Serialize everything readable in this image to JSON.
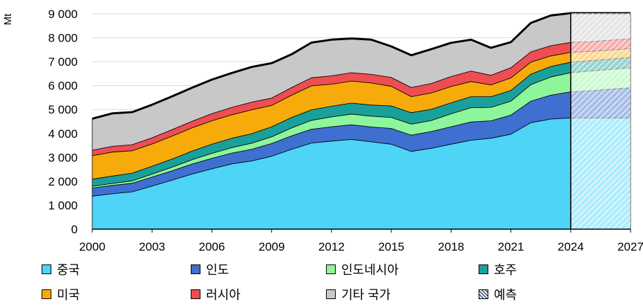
{
  "chart_data": {
    "type": "area",
    "title": "",
    "xlabel": "",
    "ylabel": "Mt",
    "x": [
      2000,
      2001,
      2002,
      2003,
      2004,
      2005,
      2006,
      2007,
      2008,
      2009,
      2010,
      2011,
      2012,
      2013,
      2014,
      2015,
      2016,
      2017,
      2018,
      2019,
      2020,
      2021,
      2022,
      2023,
      2024,
      2025,
      2026,
      2027
    ],
    "xticks": [
      2000,
      2003,
      2006,
      2009,
      2012,
      2015,
      2018,
      2021,
      2024,
      2027
    ],
    "xtick_labels": [
      "2000",
      "2003",
      "2006",
      "2009",
      "2012",
      "2015",
      "2018",
      "2021",
      "2024",
      "2027"
    ],
    "ylim": [
      0,
      9000
    ],
    "yticks": [
      0,
      1000,
      2000,
      3000,
      4000,
      5000,
      6000,
      7000,
      8000,
      9000
    ],
    "ytick_labels": [
      "0",
      "1 000",
      "2 000",
      "3 000",
      "4 000",
      "5 000",
      "6 000",
      "7 000",
      "8 000",
      "9 000"
    ],
    "forecast_start": 2024,
    "series": [
      {
        "name": "중국",
        "color": "#4dd4f7",
        "values": [
          1380,
          1480,
          1560,
          1800,
          2050,
          2300,
          2520,
          2730,
          2850,
          3050,
          3340,
          3600,
          3680,
          3750,
          3650,
          3550,
          3250,
          3380,
          3550,
          3720,
          3800,
          3970,
          4450,
          4600,
          4650,
          4650,
          4650,
          4650
        ]
      },
      {
        "name": "인도",
        "color": "#3f6fd1",
        "values": [
          340,
          350,
          360,
          380,
          390,
          420,
          440,
          450,
          490,
          530,
          560,
          580,
          600,
          610,
          620,
          660,
          680,
          700,
          730,
          760,
          730,
          800,
          900,
          1000,
          1090,
          1140,
          1200,
          1260
        ]
      },
      {
        "name": "인도네시아",
        "color": "#8df59c",
        "values": [
          70,
          80,
          100,
          120,
          150,
          180,
          210,
          230,
          250,
          280,
          330,
          370,
          410,
          450,
          450,
          460,
          460,
          460,
          540,
          600,
          560,
          580,
          690,
          760,
          800,
          820,
          830,
          840
        ]
      },
      {
        "name": "호주",
        "color": "#1aa09a",
        "values": [
          300,
          310,
          320,
          330,
          340,
          360,
          380,
          390,
          400,
          420,
          440,
          440,
          450,
          460,
          470,
          480,
          480,
          470,
          460,
          460,
          450,
          450,
          440,
          440,
          440,
          430,
          430,
          430
        ]
      },
      {
        "name": "미국",
        "color": "#f7ab0a",
        "values": [
          980,
          1000,
          940,
          930,
          960,
          970,
          980,
          980,
          1000,
          890,
          930,
          1000,
          920,
          920,
          920,
          820,
          670,
          680,
          680,
          630,
          490,
          520,
          500,
          440,
          410,
          390,
          380,
          370
        ]
      },
      {
        "name": "러시아",
        "color": "#ee4d52",
        "values": [
          230,
          240,
          250,
          260,
          270,
          280,
          300,
          310,
          320,
          310,
          320,
          340,
          350,
          350,
          360,
          370,
          380,
          400,
          420,
          440,
          400,
          430,
          430,
          430,
          420,
          410,
          410,
          410
        ]
      },
      {
        "name": "기타 국가",
        "color": "#c8c8c8",
        "values": [
          1320,
          1380,
          1360,
          1380,
          1390,
          1400,
          1420,
          1440,
          1470,
          1460,
          1390,
          1470,
          1510,
          1430,
          1450,
          1300,
          1350,
          1430,
          1410,
          1310,
          1150,
          1070,
          1210,
          1260,
          1220,
          1190,
          1130,
          1070
        ]
      }
    ],
    "legend": [
      {
        "label": "중국",
        "color": "#4dd4f7",
        "hatch": false
      },
      {
        "label": "인도",
        "color": "#3f6fd1",
        "hatch": false
      },
      {
        "label": "인도네시아",
        "color": "#8df59c",
        "hatch": false
      },
      {
        "label": "호주",
        "color": "#1aa09a",
        "hatch": false
      },
      {
        "label": "미국",
        "color": "#f7ab0a",
        "hatch": false
      },
      {
        "label": "러시아",
        "color": "#ee4d52",
        "hatch": false
      },
      {
        "label": "기타 국가",
        "color": "#c8c8c8",
        "hatch": false
      },
      {
        "label": "예측",
        "color": "#ffffff",
        "hatch": true
      }
    ]
  }
}
